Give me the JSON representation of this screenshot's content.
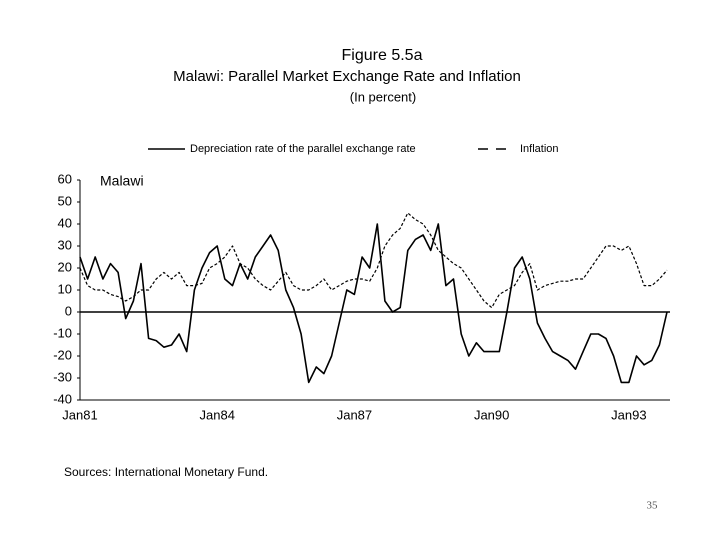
{
  "chart_data": {
    "type": "line",
    "title": "Figure 5.5a",
    "subtitle": "Malawi: Parallel Market Exchange Rate and Inflation",
    "unit_note": "(In percent)",
    "panel_label": "Malawi",
    "source": "Sources: International Monetary Fund.",
    "legend": "top",
    "categories": [
      "Jan81",
      null,
      null,
      null,
      null,
      null,
      null,
      null,
      null,
      null,
      null,
      null,
      null,
      null,
      null,
      null,
      null,
      null,
      "Jan84",
      null,
      null,
      null,
      null,
      null,
      null,
      null,
      null,
      null,
      null,
      null,
      null,
      null,
      null,
      null,
      null,
      null,
      "Jan87",
      null,
      null,
      null,
      null,
      null,
      null,
      null,
      null,
      null,
      null,
      null,
      null,
      null,
      null,
      null,
      null,
      null,
      "Jan90",
      null,
      null,
      null,
      null,
      null,
      null,
      null,
      null,
      null,
      null,
      null,
      null,
      null,
      null,
      null,
      null,
      null,
      "Jan93",
      null,
      null,
      null,
      null,
      null
    ],
    "series": [
      {
        "name": "Depreciation rate of the parallel exchange rate",
        "color": "#000000",
        "dash": false,
        "values": [
          25,
          15,
          25,
          15,
          22,
          18,
          -3,
          5,
          22,
          -12,
          -13,
          -16,
          -15,
          -10,
          -18,
          10,
          20,
          27,
          30,
          15,
          12,
          22,
          15,
          25,
          30,
          35,
          28,
          10,
          2,
          -10,
          -32,
          -25,
          -28,
          -20,
          -5,
          10,
          8,
          25,
          20,
          40,
          5,
          0,
          2,
          28,
          33,
          35,
          28,
          40,
          12,
          15,
          -10,
          -20,
          -14,
          -18,
          -18,
          -18,
          0,
          20,
          25,
          15,
          -5,
          -12,
          -18,
          -20,
          -22,
          -26,
          -18,
          -10,
          -10,
          -12,
          -20,
          -32,
          -32,
          -20,
          -24,
          -22,
          -15,
          0
        ]
      },
      {
        "name": "Inflation",
        "color": "#000000",
        "dash": true,
        "values": [
          20,
          12,
          10,
          10,
          8,
          7,
          5,
          7,
          10,
          10,
          15,
          18,
          15,
          18,
          12,
          12,
          13,
          20,
          22,
          25,
          30,
          22,
          20,
          15,
          12,
          10,
          14,
          18,
          12,
          10,
          10,
          12,
          15,
          10,
          12,
          14,
          15,
          15,
          14,
          20,
          30,
          35,
          38,
          45,
          42,
          40,
          35,
          28,
          25,
          22,
          20,
          15,
          10,
          5,
          2,
          8,
          10,
          12,
          18,
          22,
          10,
          12,
          13,
          14,
          14,
          15,
          15,
          20,
          25,
          30,
          30,
          28,
          30,
          22,
          12,
          12,
          15,
          19
        ]
      }
    ],
    "ylim": [
      -40,
      60
    ],
    "yticks": [
      -40,
      -30,
      -20,
      -10,
      0,
      10,
      20,
      30,
      40,
      50,
      60
    ]
  },
  "page_number": "35"
}
